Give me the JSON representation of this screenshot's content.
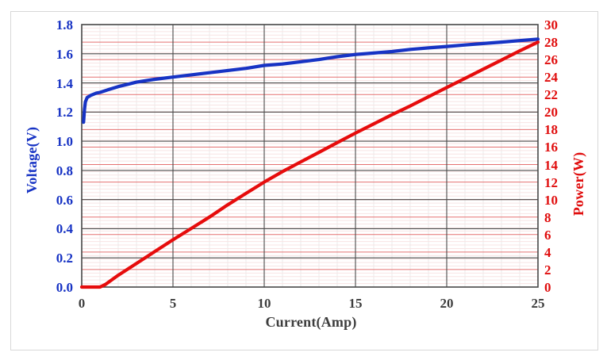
{
  "chart_data": {
    "type": "line",
    "title": "",
    "xlabel": "Current(Amp)",
    "y_left_label": "Voltage(V)",
    "y_right_label": "Power(W)",
    "xlim": [
      0,
      25
    ],
    "y_left_lim": [
      0,
      1.8
    ],
    "y_right_lim": [
      0,
      30
    ],
    "x_tick_labels": [
      "0",
      "5",
      "10",
      "15",
      "20",
      "25"
    ],
    "y_left_tick_labels": [
      "0.0",
      "0.2",
      "0.4",
      "0.6",
      "0.8",
      "1.0",
      "1.2",
      "1.4",
      "1.6",
      "1.8"
    ],
    "y_right_tick_labels": [
      "0",
      "2",
      "4",
      "6",
      "8",
      "10",
      "12",
      "14",
      "16",
      "18",
      "20",
      "22",
      "24",
      "26",
      "28",
      "30"
    ],
    "grid": {
      "major_h_color": "#4a4a4a",
      "major_v_color": "#4a4a4a",
      "right_axis_grid_color": "#e57070",
      "minor_h_color": "#f8e4e4",
      "minor_v_color": "#ebebeb",
      "border_color": "#474747",
      "minor_v_step_amp": 1,
      "minor_h_step_watt": 0.4
    },
    "legend": "none",
    "series": [
      {
        "name": "Voltage",
        "axis": "left",
        "color": "#1733c4",
        "points": [
          [
            0.1,
            1.13
          ],
          [
            0.15,
            1.22
          ],
          [
            0.2,
            1.27
          ],
          [
            0.3,
            1.3
          ],
          [
            0.5,
            1.315
          ],
          [
            0.8,
            1.33
          ],
          [
            1,
            1.335
          ],
          [
            1.5,
            1.355
          ],
          [
            2,
            1.375
          ],
          [
            2.5,
            1.39
          ],
          [
            3,
            1.405
          ],
          [
            4,
            1.425
          ],
          [
            5,
            1.44
          ],
          [
            6,
            1.455
          ],
          [
            7,
            1.47
          ],
          [
            8,
            1.485
          ],
          [
            9,
            1.5
          ],
          [
            10,
            1.52
          ],
          [
            11,
            1.53
          ],
          [
            12,
            1.545
          ],
          [
            13,
            1.56
          ],
          [
            14,
            1.58
          ],
          [
            15,
            1.595
          ],
          [
            16,
            1.605
          ],
          [
            17,
            1.615
          ],
          [
            18,
            1.63
          ],
          [
            19,
            1.64
          ],
          [
            20,
            1.65
          ],
          [
            21,
            1.66
          ],
          [
            22,
            1.67
          ],
          [
            23,
            1.68
          ],
          [
            24,
            1.69
          ],
          [
            25,
            1.7
          ]
        ]
      },
      {
        "name": "Power",
        "axis": "right",
        "color": "#e60c0c",
        "points": [
          [
            0,
            0
          ],
          [
            1,
            0
          ],
          [
            1.3,
            0.3
          ],
          [
            2,
            1.35
          ],
          [
            3,
            2.7
          ],
          [
            4,
            4.05
          ],
          [
            5,
            5.4
          ],
          [
            6,
            6.7
          ],
          [
            7,
            8.0
          ],
          [
            8,
            9.4
          ],
          [
            9,
            10.7
          ],
          [
            10,
            12.0
          ],
          [
            11,
            13.2
          ],
          [
            12,
            14.3
          ],
          [
            13,
            15.4
          ],
          [
            14,
            16.5
          ],
          [
            15,
            17.6
          ],
          [
            16,
            18.65
          ],
          [
            17,
            19.7
          ],
          [
            18,
            20.7
          ],
          [
            19,
            21.75
          ],
          [
            20,
            22.8
          ],
          [
            21,
            23.85
          ],
          [
            22,
            24.9
          ],
          [
            23,
            25.95
          ],
          [
            24,
            27.0
          ],
          [
            25,
            28.0
          ]
        ]
      }
    ]
  },
  "colors": {
    "voltage_blue": "#1733c4",
    "power_red": "#e60c0c",
    "x_label_gray": "#3d3d3d",
    "background": "#ffffff"
  }
}
